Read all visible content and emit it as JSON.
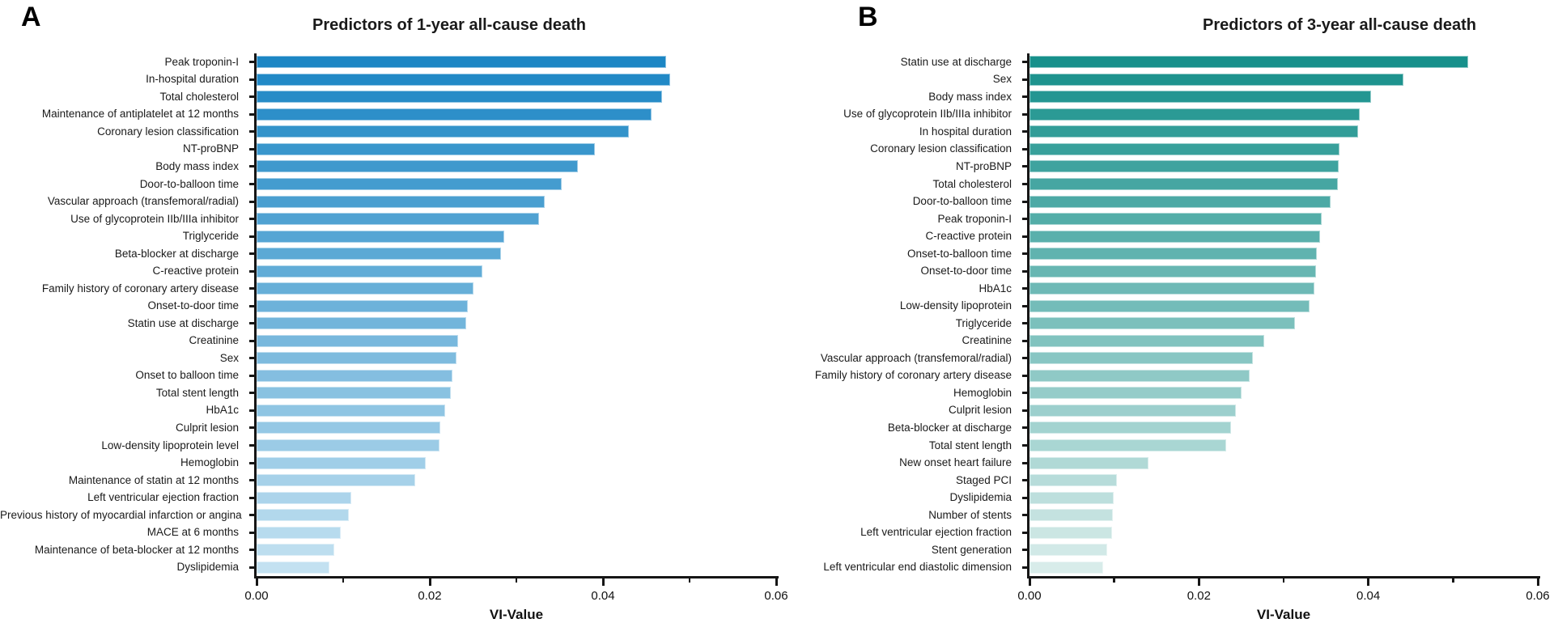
{
  "panel_letters": [
    "A",
    "B"
  ],
  "chart_data": [
    {
      "type": "bar",
      "orientation": "horizontal",
      "panel_letter": "A",
      "title": "Predictors of 1-year all-cause death",
      "xlabel": "VI-Value",
      "xlim": [
        0,
        0.06
      ],
      "xticks": [
        0,
        0.02,
        0.04,
        0.06
      ],
      "x_tick_labels": [
        "0.00",
        "0.02",
        "0.04",
        "0.06"
      ],
      "minor_xticks": [
        0.01,
        0.03,
        0.05
      ],
      "grid": false,
      "legend": "none",
      "bar_color_gradient": [
        "#1C86C4",
        "#C3E1F1"
      ],
      "categories": [
        "Peak troponin-I",
        "In-hospital duration",
        "Total cholesterol",
        "Maintenance of antiplatelet at 12 months",
        "Coronary lesion classification",
        "NT-proBNP",
        "Body mass index",
        "Door-to-balloon time",
        "Vascular approach (transfemoral/radial)",
        "Use of glycoprotein IIb/IIIa inhibitor",
        "Triglyceride",
        "Beta-blocker at discharge",
        "C-reactive protein",
        "Family history of coronary artery disease",
        "Onset-to-door time",
        "Statin use at discharge",
        "Creatinine",
        "Sex",
        "Onset to balloon time",
        "Total stent length",
        "HbA1c",
        "Culprit lesion",
        "Low-density lipoprotein level",
        "Hemoglobin",
        "Maintenance of statin at 12 months",
        "Left ventricular ejection fraction",
        "Previous history of myocardial infarction or angina",
        "MACE at 6 months",
        "Maintenance of beta-blocker at 12 months",
        "Dyslipidemia"
      ],
      "values": [
        0.0473,
        0.0478,
        0.0468,
        0.0456,
        0.043,
        0.0391,
        0.0371,
        0.0352,
        0.0333,
        0.0326,
        0.0286,
        0.0282,
        0.0261,
        0.025,
        0.0244,
        0.0242,
        0.0233,
        0.0231,
        0.0226,
        0.0224,
        0.0218,
        0.0212,
        0.0211,
        0.0195,
        0.0183,
        0.0109,
        0.0107,
        0.0097,
        0.009,
        0.0084
      ]
    },
    {
      "type": "bar",
      "orientation": "horizontal",
      "panel_letter": "B",
      "title": "Predictors of 3-year all-cause death",
      "xlabel": "VI-Value",
      "xlim": [
        0,
        0.06
      ],
      "xticks": [
        0,
        0.02,
        0.04,
        0.06
      ],
      "x_tick_labels": [
        "0.00",
        "0.02",
        "0.04",
        "0.06"
      ],
      "minor_xticks": [
        0.01,
        0.03,
        0.05
      ],
      "grid": false,
      "legend": "none",
      "bar_color_gradient": [
        "#17908B",
        "#D8ECEA"
      ],
      "categories": [
        "Statin use at discharge",
        "Sex",
        "Body mass index",
        "Use of glycoprotein IIb/IIIa inhibitor",
        "In hospital duration",
        "Coronary lesion classification",
        "NT-proBNP",
        "Total cholesterol",
        "Door-to-balloon time",
        "Peak troponin-I",
        "C-reactive protein",
        "Onset-to-balloon time",
        "Onset-to-door time",
        "HbA1c",
        "Low-density lipoprotein",
        "Triglyceride",
        "Creatinine",
        "Vascular approach (transfemoral/radial)",
        "Family history of coronary artery disease",
        "Hemoglobin",
        "Culprit lesion",
        "Beta-blocker at discharge",
        "Total stent length",
        "New onset heart failure",
        "Staged PCI",
        "Dyslipidemia",
        "Number of stents",
        "Left ventricular ejection fraction",
        "Stent generation",
        "Left ventricular end diastolic dimension"
      ],
      "values": [
        0.0518,
        0.0441,
        0.0403,
        0.039,
        0.0388,
        0.0366,
        0.0365,
        0.0364,
        0.0355,
        0.0345,
        0.0343,
        0.0339,
        0.0338,
        0.0336,
        0.0331,
        0.0313,
        0.0277,
        0.0264,
        0.026,
        0.025,
        0.0244,
        0.0238,
        0.0232,
        0.014,
        0.0103,
        0.0099,
        0.0098,
        0.0097,
        0.0092,
        0.0087
      ]
    }
  ]
}
